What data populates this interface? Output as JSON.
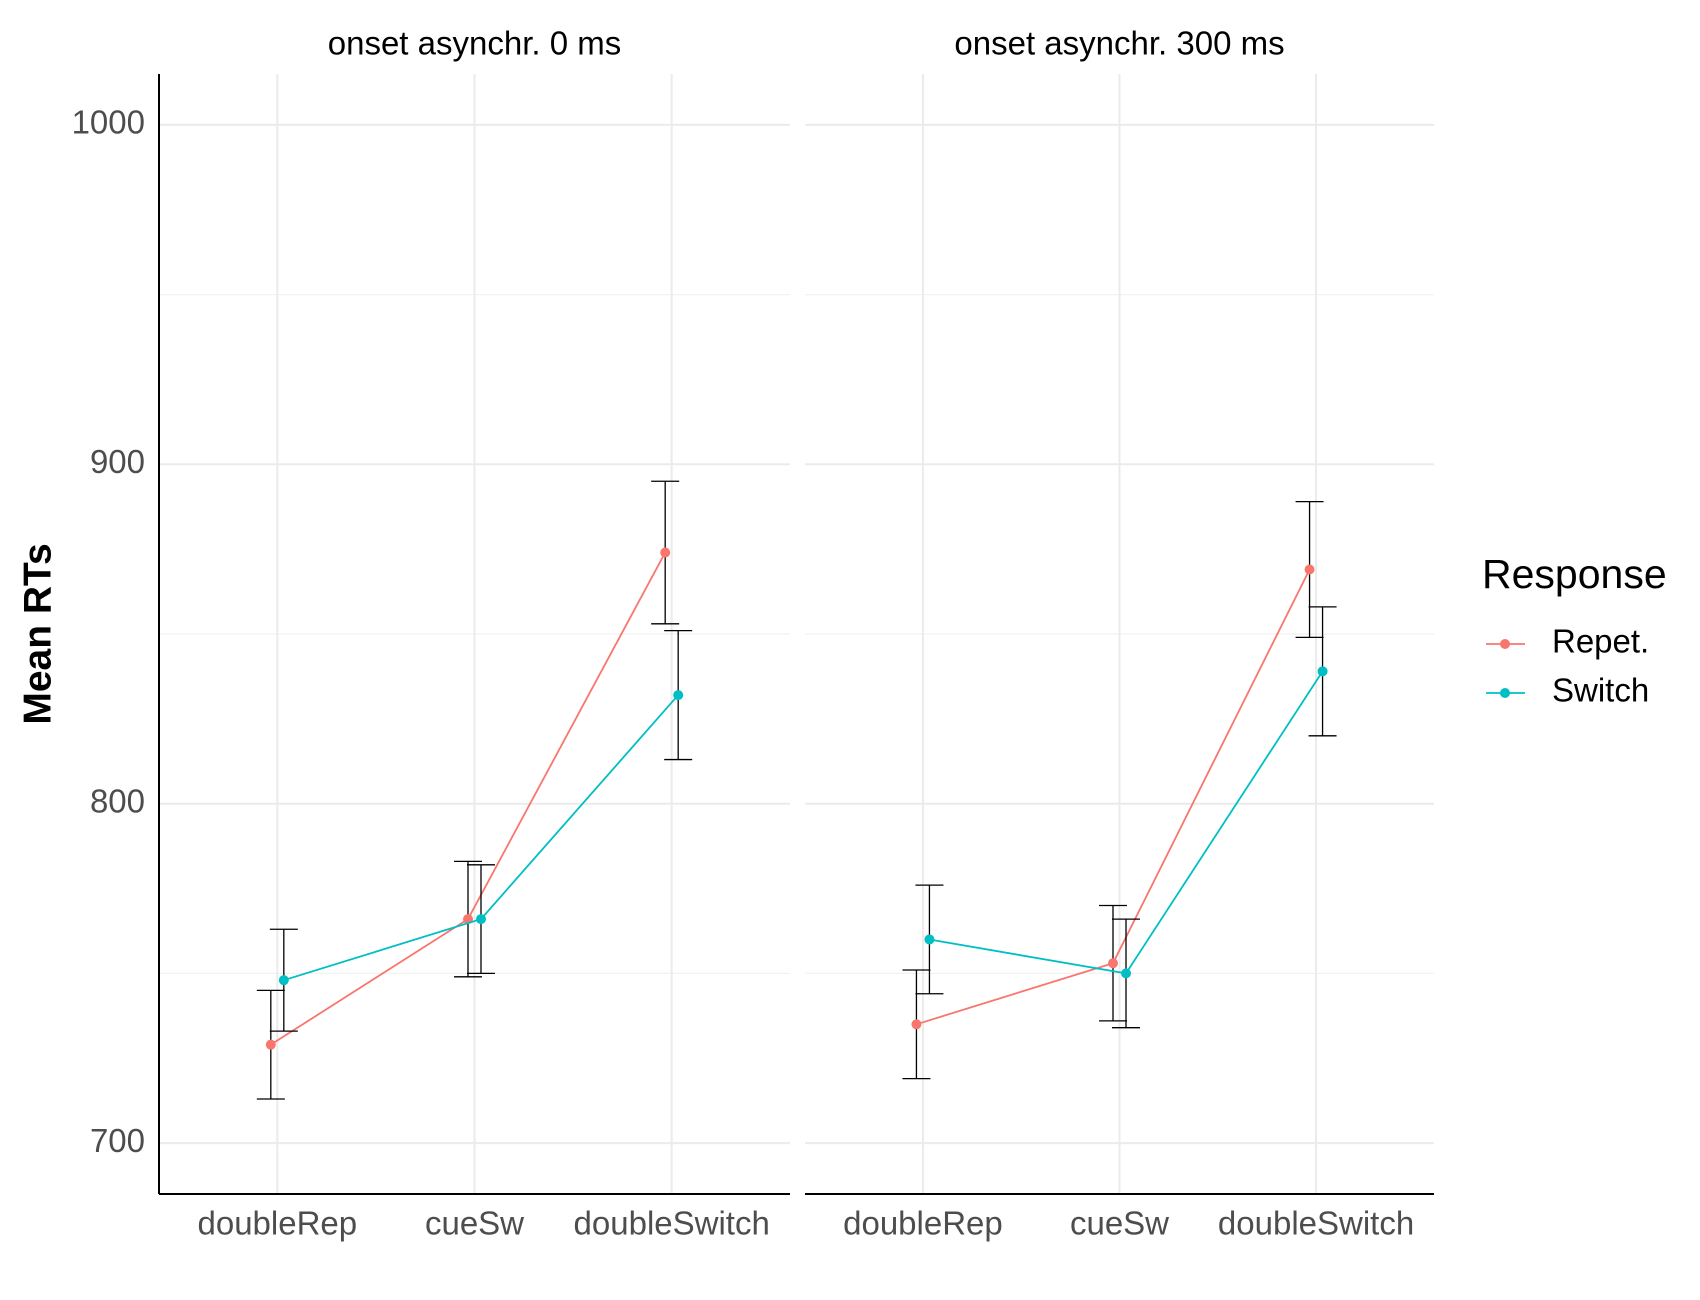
{
  "chart_data": [
    {
      "type": "line",
      "title": "onset asynchr. 0 ms",
      "ylabel": "Mean RTs",
      "legend_title": "Response",
      "categories": [
        "doubleRep",
        "cueSw",
        "doubleSwitch"
      ],
      "series": [
        {
          "name": "Repet.",
          "color": "#F8766D",
          "values": [
            729,
            766,
            874
          ],
          "errors": [
            16,
            17,
            21
          ]
        },
        {
          "name": "Switch",
          "color": "#00BFC4",
          "values": [
            748,
            766,
            832
          ],
          "errors": [
            15,
            16,
            19
          ]
        }
      ],
      "ylim": [
        685,
        1015
      ],
      "yticks": [
        700,
        800,
        900,
        1000
      ],
      "minor_yticks": [
        750,
        850,
        950
      ],
      "grid": true
    },
    {
      "type": "line",
      "title": "onset asynchr. 300 ms",
      "categories": [
        "doubleRep",
        "cueSw",
        "doubleSwitch"
      ],
      "series": [
        {
          "name": "Repet.",
          "color": "#F8766D",
          "values": [
            735,
            753,
            869
          ],
          "errors": [
            16,
            17,
            20
          ]
        },
        {
          "name": "Switch",
          "color": "#00BFC4",
          "values": [
            760,
            750,
            839
          ],
          "errors": [
            16,
            16,
            19
          ]
        }
      ],
      "ylim": [
        685,
        1015
      ],
      "yticks": [
        700,
        800,
        900,
        1000
      ],
      "minor_yticks": [
        750,
        850,
        950
      ],
      "grid": true
    }
  ]
}
